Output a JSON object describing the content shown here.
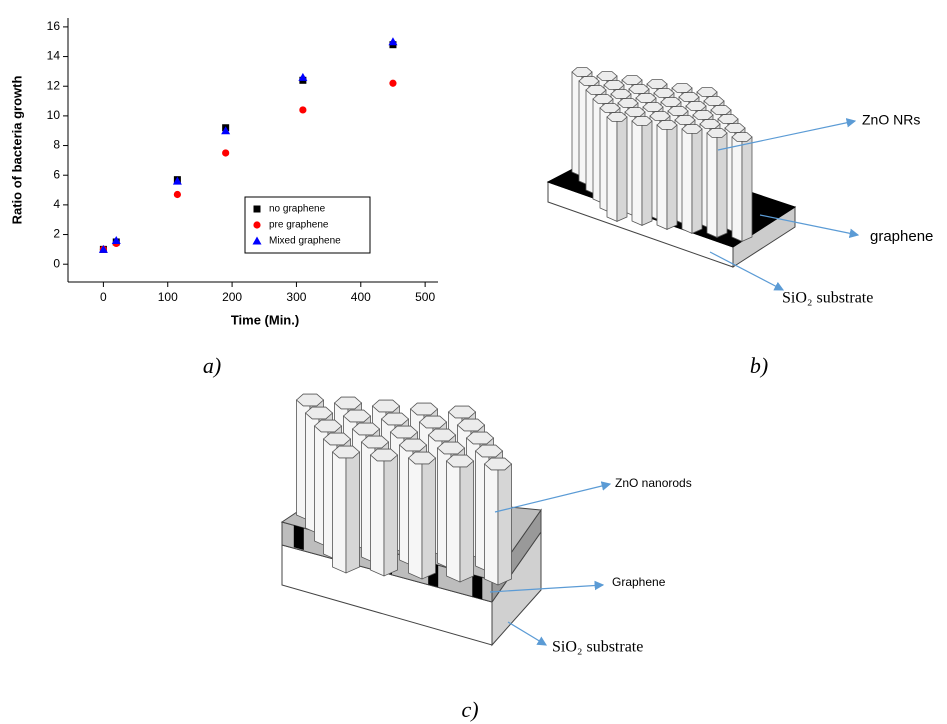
{
  "chart_data": {
    "type": "scatter",
    "panel_label": "a)",
    "x_label": "Time (Min.)",
    "y_label": "Ratio of bacteria growth",
    "x": [
      0,
      20,
      115,
      190,
      310,
      450
    ],
    "series": [
      {
        "name": "no graphene",
        "color": "#000000",
        "marker": "square",
        "values": [
          1.0,
          1.5,
          5.7,
          9.2,
          12.4,
          14.8
        ]
      },
      {
        "name": "pre graphene",
        "color": "#ff0000",
        "marker": "circle",
        "values": [
          1.0,
          1.4,
          4.7,
          7.5,
          10.4,
          12.2
        ]
      },
      {
        "name": "Mixed graphene",
        "color": "#0000ff",
        "marker": "triangle",
        "values": [
          1.0,
          1.6,
          5.6,
          9.0,
          12.6,
          15.0
        ]
      }
    ],
    "xlim": [
      -55,
      520
    ],
    "xticks": [
      0,
      100,
      200,
      300,
      400,
      500
    ],
    "ylim": [
      -1.2,
      16.6
    ],
    "yticks": [
      0,
      2,
      4,
      6,
      8,
      10,
      12,
      14,
      16
    ],
    "legend": "lower right",
    "grid": false
  },
  "diagram_b": {
    "panel_label": "b)",
    "labels": [
      "ZnO NRs",
      "graphene",
      "SiO₂ substrate"
    ]
  },
  "diagram_c": {
    "panel_label": "c)",
    "labels": [
      "ZnO nanorods",
      "Graphene",
      "SiO₂ substrate"
    ]
  }
}
